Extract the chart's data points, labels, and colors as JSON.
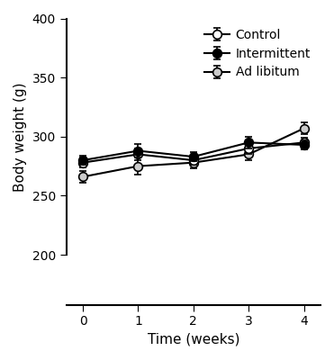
{
  "weeks": [
    0,
    1,
    2,
    3,
    4
  ],
  "control": {
    "label": "Control",
    "means": [
      278,
      285,
      280,
      290,
      295
    ],
    "errors": [
      4,
      5,
      4,
      5,
      4
    ],
    "marker": "o",
    "markerfacecolor": "white",
    "color": "#000000",
    "zorder": 2
  },
  "intermittent": {
    "label": "Intermittent",
    "means": [
      280,
      288,
      283,
      295,
      293
    ],
    "errors": [
      4,
      6,
      4,
      5,
      4
    ],
    "marker": "o",
    "markerfacecolor": "#000000",
    "color": "#000000",
    "zorder": 3
  },
  "adlibitum": {
    "label": "Ad libitum",
    "means": [
      266,
      275,
      278,
      285,
      307
    ],
    "errors": [
      5,
      7,
      5,
      5,
      5
    ],
    "marker": "o",
    "markerfacecolor": "#cccccc",
    "color": "#000000",
    "zorder": 1
  },
  "ylabel": "Body weight (g)",
  "xlabel": "Time (weeks)",
  "ylim": [
    200,
    400
  ],
  "yticks": [
    200,
    250,
    300,
    350,
    400
  ],
  "xlim": [
    -0.3,
    4.3
  ],
  "xticks": [
    0,
    1,
    2,
    3,
    4
  ],
  "linewidth": 1.5,
  "markersize": 7,
  "capsize": 3,
  "elinewidth": 1.2,
  "legend_fontsize": 10,
  "axis_fontsize": 11,
  "tick_fontsize": 10
}
